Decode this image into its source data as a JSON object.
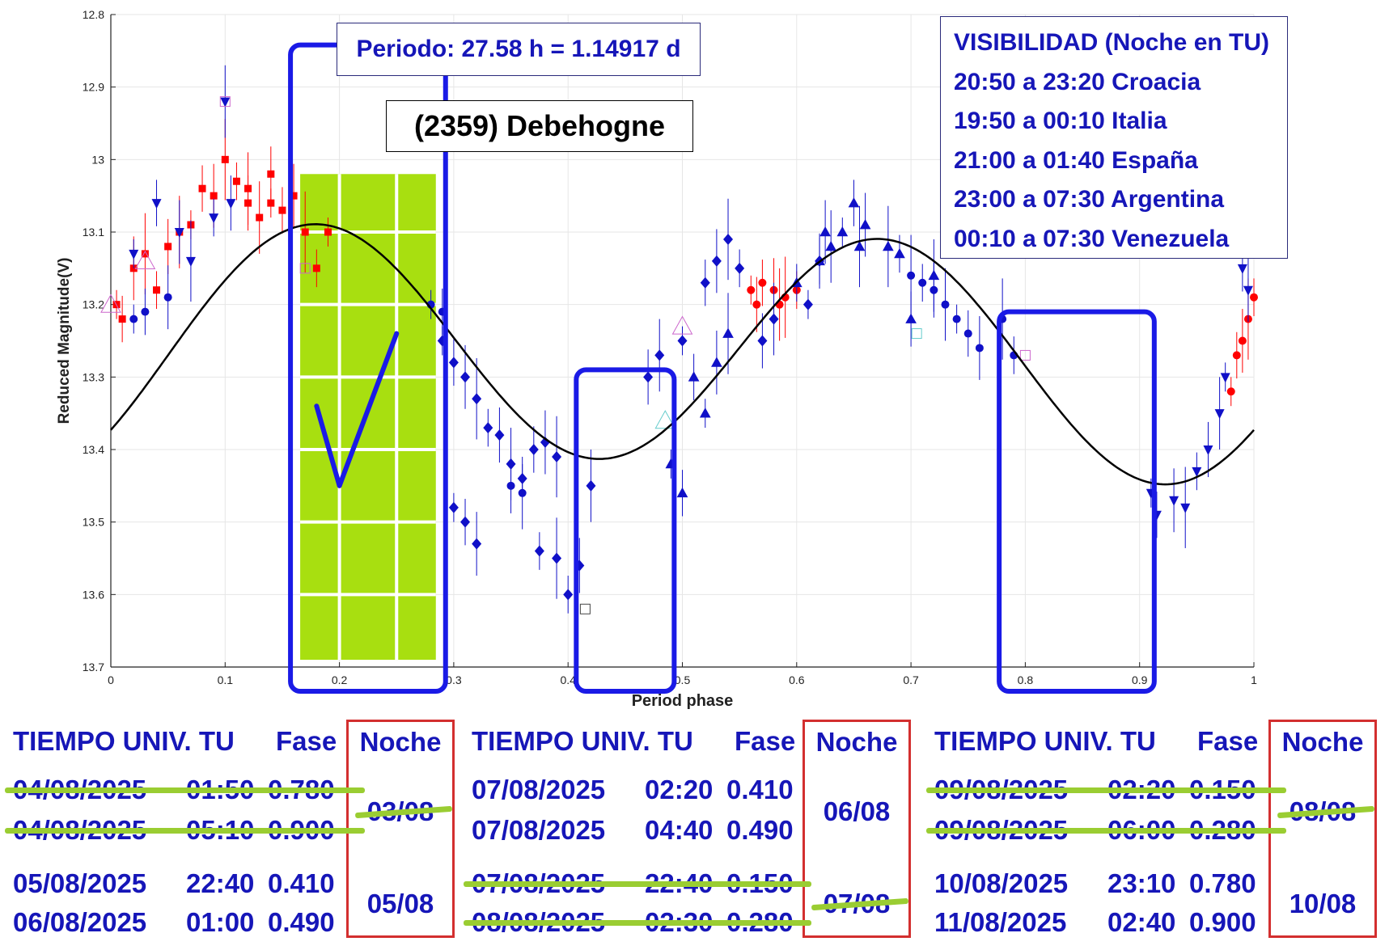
{
  "chart_data": {
    "type": "scatter",
    "title": "(2359) Debehogne",
    "xlabel": "Period phase",
    "ylabel": "Reduced Magnitude(V)",
    "xlim": [
      0,
      1
    ],
    "ylim": [
      12.8,
      13.7
    ],
    "y_reversed": true,
    "xticks": [
      "0",
      "0.1",
      "0.2",
      "0.3",
      "0.4",
      "0.5",
      "0.6",
      "0.7",
      "0.8",
      "0.9",
      "1"
    ],
    "yticks": [
      "12.8",
      "12.9",
      "13",
      "13.1",
      "13.2",
      "13.3",
      "13.4",
      "13.5",
      "13.6",
      "13.7"
    ],
    "grid": true,
    "fit_curve": {
      "mean": 13.265,
      "terms": [
        {
          "harmonic": 1,
          "cos": 0.011,
          "sin": -0.017
        },
        {
          "harmonic": 2,
          "cos": 0.097,
          "sin": -0.134
        }
      ]
    },
    "series": [
      {
        "marker": "square",
        "color": "#ff0000",
        "points": [
          [
            0.005,
            13.2
          ],
          [
            0.01,
            13.22
          ],
          [
            0.02,
            13.15
          ],
          [
            0.03,
            13.13
          ],
          [
            0.04,
            13.18
          ],
          [
            0.05,
            13.12
          ],
          [
            0.06,
            13.1
          ],
          [
            0.07,
            13.09
          ],
          [
            0.08,
            13.04
          ],
          [
            0.09,
            13.05
          ],
          [
            0.1,
            13.0
          ],
          [
            0.11,
            13.03
          ],
          [
            0.12,
            13.06
          ],
          [
            0.13,
            13.08
          ],
          [
            0.14,
            13.06
          ],
          [
            0.15,
            13.07
          ],
          [
            0.16,
            13.05
          ],
          [
            0.17,
            13.1
          ],
          [
            0.18,
            13.15
          ],
          [
            0.14,
            13.02
          ],
          [
            0.12,
            13.04
          ],
          [
            0.19,
            13.1
          ]
        ]
      },
      {
        "marker": "circle",
        "color": "#ff0000",
        "points": [
          [
            0.56,
            13.18
          ],
          [
            0.57,
            13.17
          ],
          [
            0.58,
            13.18
          ],
          [
            0.59,
            13.19
          ],
          [
            0.6,
            13.18
          ],
          [
            0.565,
            13.2
          ],
          [
            0.585,
            13.2
          ],
          [
            0.98,
            13.32
          ],
          [
            0.985,
            13.27
          ],
          [
            0.99,
            13.25
          ],
          [
            0.995,
            13.22
          ],
          [
            1.0,
            13.19
          ]
        ]
      },
      {
        "marker": "triangle-down",
        "color": "#1010c8",
        "points": [
          [
            0.02,
            13.13
          ],
          [
            0.04,
            13.06
          ],
          [
            0.06,
            13.1
          ],
          [
            0.07,
            13.14
          ],
          [
            0.09,
            13.08
          ],
          [
            0.105,
            13.06
          ],
          [
            0.1,
            12.92
          ],
          [
            0.91,
            13.46
          ],
          [
            0.915,
            13.49
          ],
          [
            0.93,
            13.47
          ],
          [
            0.94,
            13.48
          ],
          [
            0.95,
            13.43
          ],
          [
            0.96,
            13.4
          ],
          [
            0.97,
            13.35
          ],
          [
            0.975,
            13.3
          ],
          [
            0.99,
            13.15
          ],
          [
            0.995,
            13.18
          ]
        ]
      },
      {
        "marker": "triangle-up",
        "color": "#1010c8",
        "points": [
          [
            0.52,
            13.35
          ],
          [
            0.51,
            13.3
          ],
          [
            0.53,
            13.28
          ],
          [
            0.54,
            13.24
          ],
          [
            0.6,
            13.17
          ],
          [
            0.62,
            13.14
          ],
          [
            0.63,
            13.12
          ],
          [
            0.64,
            13.1
          ],
          [
            0.65,
            13.06
          ],
          [
            0.66,
            13.09
          ],
          [
            0.68,
            13.12
          ],
          [
            0.69,
            13.13
          ],
          [
            0.7,
            13.22
          ],
          [
            0.72,
            13.16
          ],
          [
            0.49,
            13.42
          ],
          [
            0.5,
            13.46
          ],
          [
            0.625,
            13.1
          ],
          [
            0.655,
            13.12
          ]
        ]
      },
      {
        "marker": "diamond",
        "color": "#1010c8",
        "points": [
          [
            0.29,
            13.25
          ],
          [
            0.3,
            13.28
          ],
          [
            0.31,
            13.3
          ],
          [
            0.32,
            13.33
          ],
          [
            0.33,
            13.37
          ],
          [
            0.34,
            13.38
          ],
          [
            0.35,
            13.42
          ],
          [
            0.36,
            13.44
          ],
          [
            0.37,
            13.4
          ],
          [
            0.38,
            13.39
          ],
          [
            0.39,
            13.41
          ],
          [
            0.4,
            13.6
          ],
          [
            0.41,
            13.56
          ],
          [
            0.42,
            13.45
          ],
          [
            0.3,
            13.48
          ],
          [
            0.31,
            13.5
          ],
          [
            0.32,
            13.53
          ],
          [
            0.39,
            13.55
          ],
          [
            0.375,
            13.54
          ],
          [
            0.47,
            13.3
          ],
          [
            0.48,
            13.27
          ],
          [
            0.5,
            13.25
          ],
          [
            0.52,
            13.17
          ],
          [
            0.53,
            13.14
          ],
          [
            0.54,
            13.11
          ],
          [
            0.55,
            13.15
          ],
          [
            0.57,
            13.25
          ],
          [
            0.58,
            13.22
          ],
          [
            0.61,
            13.2
          ],
          [
            0.62,
            13.14
          ]
        ]
      },
      {
        "marker": "circle",
        "color": "#1010c8",
        "points": [
          [
            0.02,
            13.22
          ],
          [
            0.03,
            13.21
          ],
          [
            0.05,
            13.19
          ],
          [
            0.7,
            13.16
          ],
          [
            0.71,
            13.17
          ],
          [
            0.72,
            13.18
          ],
          [
            0.73,
            13.2
          ],
          [
            0.74,
            13.22
          ],
          [
            0.75,
            13.24
          ],
          [
            0.76,
            13.26
          ],
          [
            0.78,
            13.22
          ],
          [
            0.79,
            13.27
          ],
          [
            0.35,
            13.45
          ],
          [
            0.36,
            13.46
          ],
          [
            0.28,
            13.2
          ],
          [
            0.29,
            13.21
          ]
        ]
      },
      {
        "marker": "open-triangle",
        "color": "#cc66cc",
        "points": [
          [
            0.0,
            13.2
          ],
          [
            0.03,
            13.14
          ],
          [
            0.5,
            13.23
          ]
        ]
      },
      {
        "marker": "open-triangle",
        "color": "#66cccc",
        "points": [
          [
            0.485,
            13.36
          ]
        ]
      },
      {
        "marker": "open-square",
        "color": "#cc66cc",
        "points": [
          [
            0.1,
            12.92
          ],
          [
            0.17,
            13.15
          ],
          [
            0.8,
            13.27
          ]
        ]
      },
      {
        "marker": "open-square",
        "color": "#66cccc",
        "points": [
          [
            0.705,
            13.24
          ]
        ]
      },
      {
        "marker": "open-square",
        "color": "#444444",
        "points": [
          [
            0.415,
            13.62
          ]
        ]
      }
    ]
  },
  "annotations": {
    "period": "Periodo: 27.58 h = 1.14917 d",
    "object": "(2359) Debehogne",
    "visibility_title": "VISIBILIDAD (Noche en TU)",
    "visibility": [
      "20:50 a 23:20 Croacia",
      "19:50 a 00:10 Italia",
      "21:00 a 01:40 España",
      "23:00 a 07:30 Argentina",
      "00:10 a 07:30 Venezuela"
    ],
    "check_mark": "✓",
    "highlight_ranges": [
      {
        "from": 0.16,
        "to": 0.29,
        "color": "#a8df10",
        "approved": true
      },
      {
        "from": 0.41,
        "to": 0.49,
        "approved": false
      },
      {
        "from": 0.78,
        "to": 0.91,
        "approved": false
      }
    ],
    "colors": {
      "blue": "#1616b8",
      "red": "#d32f2f",
      "green": "#9acd32"
    }
  },
  "tables": [
    {
      "header": {
        "time": "TIEMPO UNIV. TU",
        "phase": "Fase",
        "night": "Noche"
      },
      "groups": [
        {
          "night": "03/08",
          "night_struck": true,
          "rows": [
            {
              "date": "04/08/2025",
              "time": "01:50",
              "phase": "0.780",
              "struck": true
            },
            {
              "date": "04/08/2025",
              "time": "05:10",
              "phase": "0.900",
              "struck": true
            }
          ]
        },
        {
          "night": "05/08",
          "night_struck": false,
          "rows": [
            {
              "date": "05/08/2025",
              "time": "22:40",
              "phase": "0.410",
              "struck": false
            },
            {
              "date": "06/08/2025",
              "time": "01:00",
              "phase": "0.490",
              "struck": false
            }
          ]
        }
      ]
    },
    {
      "header": {
        "time": "TIEMPO UNIV. TU",
        "phase": "Fase",
        "night": "Noche"
      },
      "groups": [
        {
          "night": "06/08",
          "night_struck": false,
          "rows": [
            {
              "date": "07/08/2025",
              "time": "02:20",
              "phase": "0.410",
              "struck": false
            },
            {
              "date": "07/08/2025",
              "time": "04:40",
              "phase": "0.490",
              "struck": false
            }
          ]
        },
        {
          "night": "07/08",
          "night_struck": true,
          "rows": [
            {
              "date": "07/08/2025",
              "time": "22:40",
              "phase": "0.150",
              "struck": true
            },
            {
              "date": "08/08/2025",
              "time": "02:30",
              "phase": "0.280",
              "struck": true
            }
          ]
        }
      ]
    },
    {
      "header": {
        "time": "TIEMPO UNIV. TU",
        "phase": "Fase",
        "night": "Noche"
      },
      "groups": [
        {
          "night": "08/08",
          "night_struck": true,
          "rows": [
            {
              "date": "09/08/2025",
              "time": "02:20",
              "phase": "0.150",
              "struck": true
            },
            {
              "date": "09/08/2025",
              "time": "06:00",
              "phase": "0.280",
              "struck": true
            }
          ]
        },
        {
          "night": "10/08",
          "night_struck": false,
          "rows": [
            {
              "date": "10/08/2025",
              "time": "23:10",
              "phase": "0.780",
              "struck": false
            },
            {
              "date": "11/08/2025",
              "time": "02:40",
              "phase": "0.900",
              "struck": false
            }
          ]
        }
      ]
    }
  ]
}
